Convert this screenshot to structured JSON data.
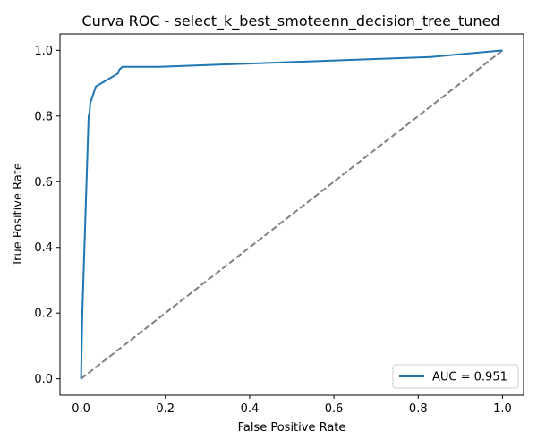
{
  "chart_data": {
    "type": "line",
    "title": "Curva ROC - select_k_best_smoteenn_decision_tree_tuned",
    "xlabel": "False Positive Rate",
    "ylabel": "True Positive Rate",
    "xlim": [
      -0.05,
      1.05
    ],
    "ylim": [
      -0.05,
      1.05
    ],
    "xticks": [
      0.0,
      0.2,
      0.4,
      0.6,
      0.8,
      1.0
    ],
    "xtick_labels": [
      "0.0",
      "0.2",
      "0.4",
      "0.6",
      "0.8",
      "1.0"
    ],
    "yticks": [
      0.0,
      0.2,
      0.4,
      0.6,
      0.8,
      1.0
    ],
    "ytick_labels": [
      "0.0",
      "0.2",
      "0.4",
      "0.6",
      "0.8",
      "1.0"
    ],
    "grid": false,
    "legend_position": "lower-right",
    "series": [
      {
        "name": "AUC = 0.951",
        "color": "#1f77b4",
        "style": "solid",
        "x": [
          0.0,
          0.003,
          0.018,
          0.02,
          0.022,
          0.035,
          0.088,
          0.09,
          0.098,
          0.185,
          0.83,
          1.0
        ],
        "y": [
          0.0,
          0.2,
          0.8,
          0.81,
          0.84,
          0.89,
          0.93,
          0.94,
          0.95,
          0.95,
          0.98,
          1.0
        ]
      },
      {
        "name": "",
        "color": "#808080",
        "style": "dashed",
        "x": [
          0.0,
          1.0
        ],
        "y": [
          0.0,
          1.0
        ]
      }
    ]
  }
}
